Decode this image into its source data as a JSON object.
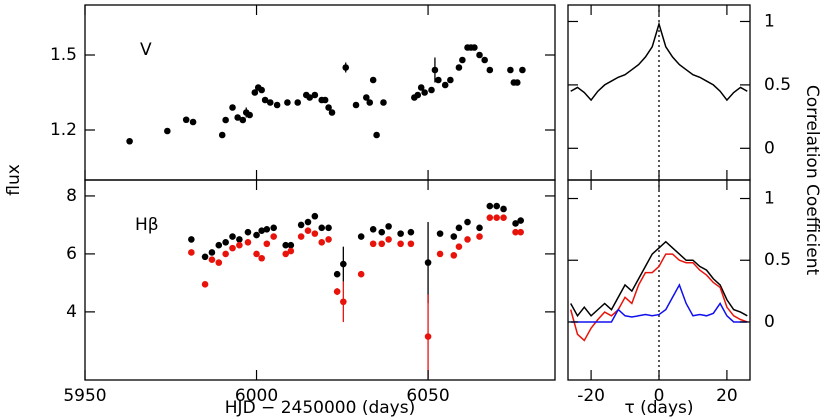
{
  "chart_data": [
    {
      "type": "scatter",
      "label": "V",
      "ylabel": "flux",
      "x": [
        5963,
        5974,
        5979.5,
        5981.5,
        5990,
        5991,
        5993,
        5994.5,
        5996,
        5997,
        5998,
        5999.5,
        6000.5,
        6001.5,
        6002.5,
        6004,
        6006,
        6009,
        6012,
        6014.5,
        6015.5,
        6017,
        6019,
        6020,
        6021,
        6022,
        6026,
        6029,
        6032,
        6033,
        6034,
        6035,
        6037,
        6046,
        6047,
        6048,
        6049,
        6051,
        6052,
        6053,
        6055,
        6056.5,
        6059,
        6060,
        6061.5,
        6062.5,
        6063.5,
        6065,
        6066.5,
        6068,
        6074,
        6075,
        6076,
        6077.5
      ],
      "series": [
        {
          "color": "#000000",
          "values": [
            1.155,
            1.196,
            1.241,
            1.232,
            1.18,
            1.24,
            1.29,
            1.25,
            1.24,
            1.27,
            1.26,
            1.35,
            1.37,
            1.36,
            1.32,
            1.31,
            1.3,
            1.31,
            1.31,
            1.34,
            1.33,
            1.34,
            1.32,
            1.32,
            1.29,
            1.27,
            1.45,
            1.3,
            1.33,
            1.31,
            1.4,
            1.18,
            1.31,
            1.33,
            1.34,
            1.37,
            1.35,
            1.36,
            1.44,
            1.4,
            1.38,
            1.4,
            1.45,
            1.48,
            1.53,
            1.53,
            1.53,
            1.5,
            1.48,
            1.44,
            1.44,
            1.39,
            1.39,
            1.44
          ],
          "errors": [
            0.012,
            0.012,
            0.012,
            0.012,
            0.012,
            0.012,
            0.012,
            0.012,
            0.012,
            0.02,
            0.012,
            0.012,
            0.012,
            0.012,
            0.012,
            0.012,
            0.012,
            0.012,
            0.012,
            0.012,
            0.012,
            0.012,
            0.012,
            0.012,
            0.012,
            0.012,
            0.02,
            0.012,
            0.012,
            0.012,
            0.012,
            0.012,
            0.012,
            0.012,
            0.012,
            0.012,
            0.012,
            0.012,
            0.05,
            0.012,
            0.012,
            0.012,
            0.012,
            0.012,
            0.012,
            0.012,
            0.012,
            0.012,
            0.012,
            0.012,
            0.012,
            0.012,
            0.012,
            0.012
          ]
        }
      ],
      "xlim": [
        5950,
        6087
      ],
      "xticks": [
        5950,
        6000,
        6050
      ],
      "show_xtick_labels": false,
      "ylim": [
        1.0,
        1.7
      ],
      "yticks": [
        1.2,
        1.5
      ]
    },
    {
      "type": "scatter",
      "label": "Hβ",
      "xlabel": "HJD − 2450000 (days)",
      "x": [
        5981,
        5985,
        5987,
        5989,
        5991,
        5993,
        5995,
        5997.5,
        6000,
        6001.5,
        6003,
        6005,
        6008.5,
        6010,
        6013,
        6015,
        6017,
        6019,
        6021,
        6023.5,
        6025.3,
        6030.5,
        6034,
        6036.5,
        6038.5,
        6042,
        6045,
        6050,
        6053.5,
        6057.5,
        6059,
        6061.5,
        6065,
        6068,
        6070,
        6072,
        6075.5,
        6077
      ],
      "series": [
        {
          "color": "#000000",
          "values": [
            6.5,
            5.9,
            6.05,
            6.3,
            6.4,
            6.6,
            6.5,
            6.75,
            6.65,
            6.8,
            6.85,
            6.9,
            6.3,
            6.3,
            7.0,
            7.1,
            7.3,
            6.9,
            6.9,
            5.3,
            5.65,
            6.6,
            6.85,
            6.75,
            6.95,
            6.7,
            6.75,
            5.7,
            6.7,
            6.6,
            6.9,
            7.1,
            6.9,
            7.65,
            7.65,
            7.55,
            7.05,
            7.15
          ],
          "errors": [
            0.08,
            0.08,
            0.08,
            0.08,
            0.08,
            0.08,
            0.08,
            0.08,
            0.08,
            0.08,
            0.08,
            0.08,
            0.08,
            0.08,
            0.08,
            0.08,
            0.08,
            0.08,
            0.08,
            0.08,
            0.6,
            0.08,
            0.08,
            0.08,
            0.08,
            0.08,
            0.08,
            1.4,
            0.08,
            0.08,
            0.08,
            0.08,
            0.08,
            0.08,
            0.08,
            0.08,
            0.08,
            0.08
          ]
        },
        {
          "color": "#e8140c",
          "values": [
            6.05,
            4.95,
            5.8,
            5.7,
            6.0,
            6.2,
            6.3,
            6.4,
            6.0,
            5.85,
            6.35,
            6.6,
            6.0,
            6.1,
            6.6,
            6.8,
            6.7,
            6.4,
            6.5,
            4.7,
            4.35,
            5.3,
            6.35,
            6.35,
            6.5,
            6.35,
            6.35,
            3.15,
            6.0,
            5.95,
            6.25,
            6.5,
            6.6,
            7.25,
            7.25,
            7.25,
            6.75,
            6.75
          ],
          "errors": [
            0.08,
            0.1,
            0.08,
            0.08,
            0.08,
            0.08,
            0.08,
            0.08,
            0.08,
            0.08,
            0.08,
            0.08,
            0.08,
            0.08,
            0.08,
            0.08,
            0.08,
            0.08,
            0.08,
            0.12,
            0.7,
            0.1,
            0.08,
            0.08,
            0.08,
            0.08,
            0.08,
            1.45,
            0.08,
            0.08,
            0.08,
            0.08,
            0.08,
            0.08,
            0.08,
            0.08,
            0.08,
            0.08
          ]
        }
      ],
      "xlim": [
        5950,
        6087
      ],
      "xticks": [
        5950,
        6000,
        6050
      ],
      "show_xtick_labels": true,
      "ylim": [
        1.65,
        8.55
      ],
      "yticks": [
        4,
        6,
        8
      ]
    },
    {
      "type": "line",
      "ylabel": "Correlation Coefficient",
      "vline": 0,
      "x": [
        -26,
        -24,
        -22,
        -20,
        -18,
        -16,
        -14,
        -12,
        -10,
        -8,
        -6,
        -4,
        -2,
        0,
        2,
        4,
        6,
        8,
        10,
        12,
        14,
        16,
        18,
        20,
        22,
        24,
        26
      ],
      "series": [
        {
          "color": "#000000",
          "values": [
            0.45,
            0.48,
            0.44,
            0.38,
            0.45,
            0.5,
            0.53,
            0.56,
            0.58,
            0.62,
            0.66,
            0.72,
            0.8,
            0.98,
            0.8,
            0.72,
            0.66,
            0.62,
            0.58,
            0.56,
            0.53,
            0.5,
            0.45,
            0.38,
            0.44,
            0.48,
            0.45
          ]
        }
      ],
      "xlim": [
        -26.8,
        26.8
      ],
      "xticks": [
        -20,
        0,
        20
      ],
      "show_xtick_labels": false,
      "ylim": [
        -0.25,
        1.13
      ],
      "yticks": [
        0,
        0.5,
        1
      ]
    },
    {
      "type": "line",
      "xlabel": "τ (days)",
      "vline": 0,
      "x": [
        -26,
        -24,
        -22,
        -20,
        -18,
        -16,
        -14,
        -12,
        -10,
        -8,
        -6,
        -4,
        -2,
        0,
        2,
        4,
        6,
        8,
        10,
        12,
        14,
        16,
        18,
        20,
        22,
        24,
        26
      ],
      "series": [
        {
          "color": "#000000",
          "values": [
            0.15,
            0.05,
            0.12,
            0.05,
            0.1,
            0.15,
            0.1,
            0.2,
            0.3,
            0.25,
            0.35,
            0.45,
            0.55,
            0.6,
            0.65,
            0.6,
            0.55,
            0.5,
            0.5,
            0.45,
            0.42,
            0.35,
            0.3,
            0.18,
            0.1,
            0.08,
            0.05
          ]
        },
        {
          "color": "#e8140c",
          "values": [
            0.1,
            -0.1,
            -0.15,
            -0.05,
            0.02,
            0.08,
            0.05,
            0.1,
            0.2,
            0.15,
            0.3,
            0.4,
            0.4,
            0.45,
            0.55,
            0.55,
            0.5,
            0.48,
            0.48,
            0.42,
            0.38,
            0.32,
            0.28,
            0.12,
            0.05,
            0.02,
            0.0
          ]
        },
        {
          "color": "#1010ee",
          "values": [
            0,
            0,
            0,
            0,
            0,
            0,
            0,
            0.1,
            0.05,
            0.04,
            0.05,
            0.06,
            0.05,
            0.06,
            0.1,
            0.2,
            0.3,
            0.15,
            0.05,
            0.06,
            0.05,
            0.07,
            0.15,
            0.05,
            0,
            0,
            0
          ]
        }
      ],
      "xlim": [
        -26.8,
        26.8
      ],
      "xticks": [
        -20,
        0,
        20
      ],
      "show_xtick_labels": true,
      "ylim": [
        -0.47,
        1.15
      ],
      "yticks": [
        0,
        0.5,
        1
      ]
    }
  ]
}
